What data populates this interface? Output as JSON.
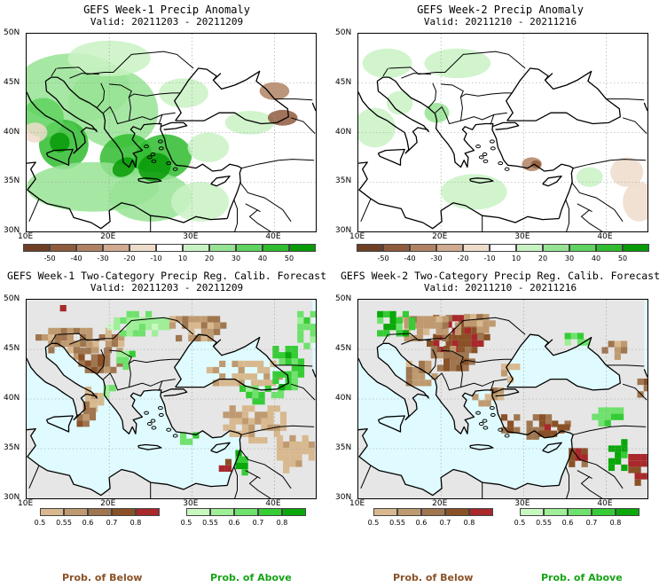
{
  "panels": [
    {
      "title": "GEFS Week-1 Precip Anomaly",
      "valid": "Valid: 20211203 - 20211209",
      "type": "anomaly",
      "lat_labels": [
        "50N",
        "45N",
        "40N",
        "35N",
        "30N"
      ],
      "lon_labels": [
        "10E",
        "20E",
        "30E",
        "40E"
      ],
      "colorbar": {
        "ticks": [
          "-50",
          "-40",
          "-30",
          "-20",
          "-10",
          "10",
          "20",
          "30",
          "40",
          "50"
        ],
        "colors": [
          "#6e3f25",
          "#8f5b3d",
          "#b08263",
          "#d0ab91",
          "#eedccb",
          "#ffffff",
          "#c9f2c4",
          "#96e394",
          "#5fd25f",
          "#2fbc2f",
          "#089a08"
        ]
      }
    },
    {
      "title": "GEFS Week-2 Precip Anomaly",
      "valid": "Valid: 20211210 - 20211216",
      "type": "anomaly",
      "lat_labels": [
        "50N",
        "45N",
        "40N",
        "35N",
        "30N"
      ],
      "lon_labels": [
        "10E",
        "20E",
        "30E",
        "40E"
      ],
      "colorbar": {
        "ticks": [
          "-50",
          "-40",
          "-30",
          "-20",
          "-10",
          "10",
          "20",
          "30",
          "40",
          "50"
        ],
        "colors": [
          "#6e3f25",
          "#8f5b3d",
          "#b08263",
          "#d0ab91",
          "#eedccb",
          "#ffffff",
          "#c9f2c4",
          "#96e394",
          "#5fd25f",
          "#2fbc2f",
          "#089a08"
        ]
      }
    },
    {
      "title": "GEFS Week-1 Two-Category Precip Reg. Calib. Forecast",
      "valid": "Valid: 20211203 - 20211209",
      "type": "probability",
      "lat_labels": [
        "50N",
        "45N",
        "40N",
        "35N",
        "30N"
      ],
      "lon_labels": [
        "10E",
        "20E",
        "30E",
        "40E"
      ],
      "below_bar": {
        "ticks": [
          "0.5",
          "0.55",
          "0.6",
          "0.7",
          "0.8"
        ],
        "colors": [
          "#d8b98f",
          "#bf9a70",
          "#9f7650",
          "#8a5127",
          "#a8282b"
        ]
      },
      "above_bar": {
        "ticks": [
          "0.5",
          "0.55",
          "0.6",
          "0.7",
          "0.8"
        ],
        "colors": [
          "#c8f7c0",
          "#9fef98",
          "#6fe16d",
          "#35cc35",
          "#0aa80a"
        ]
      }
    },
    {
      "title": "GEFS Week-2 Two-Category Precip Reg. Calib. Forecast",
      "valid": "Valid: 20211210 - 20211216",
      "type": "probability",
      "lat_labels": [
        "50N",
        "45N",
        "40N",
        "35N",
        "30N"
      ],
      "lon_labels": [
        "10E",
        "20E",
        "30E",
        "40E"
      ],
      "below_bar": {
        "ticks": [
          "0.5",
          "0.55",
          "0.6",
          "0.7",
          "0.8"
        ],
        "colors": [
          "#d8b98f",
          "#bf9a70",
          "#9f7650",
          "#8a5127",
          "#a8282b"
        ]
      },
      "above_bar": {
        "ticks": [
          "0.5",
          "0.55",
          "0.6",
          "0.7",
          "0.8"
        ],
        "colors": [
          "#c8f7c0",
          "#9fef98",
          "#6fe16d",
          "#35cc35",
          "#0aa80a"
        ]
      }
    }
  ],
  "footer": {
    "below_label": "Prob. of Below",
    "above_label": "Prob. of Above",
    "below_color": "#8a5127",
    "above_color": "#17a317"
  },
  "colors": {
    "sea_probability": "#dffbff",
    "land_probability": "#e6e6e6",
    "coastline": "#000000"
  }
}
